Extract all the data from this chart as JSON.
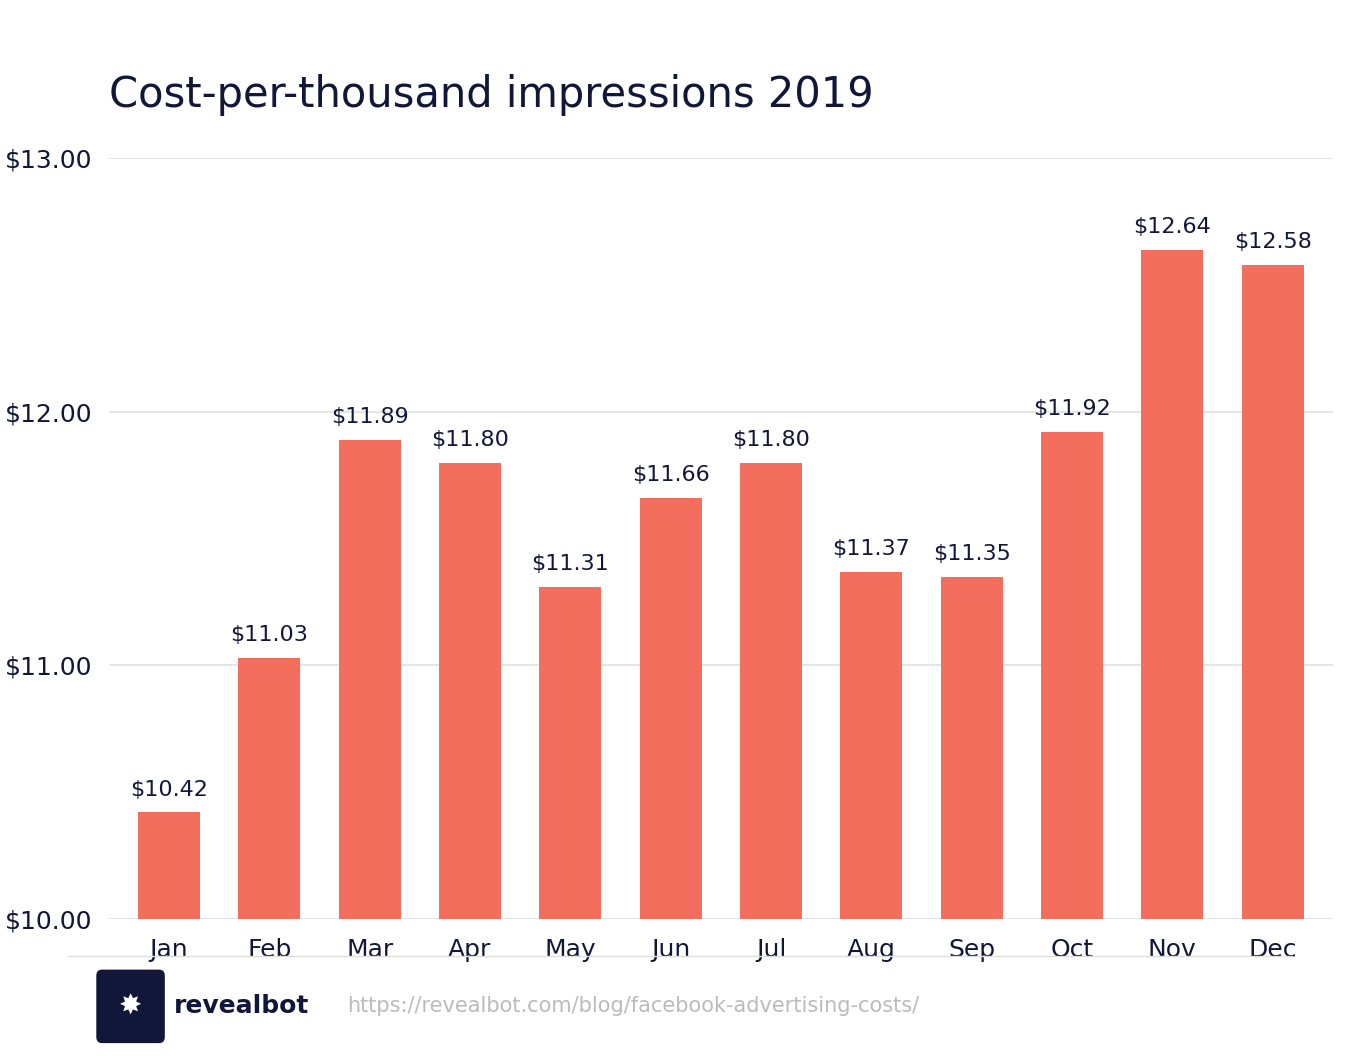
{
  "title": "Cost-per-thousand impressions 2019",
  "categories": [
    "Jan",
    "Feb",
    "Mar",
    "Apr",
    "May",
    "Jun",
    "Jul",
    "Aug",
    "Sep",
    "Oct",
    "Nov",
    "Dec"
  ],
  "values": [
    10.42,
    11.03,
    11.89,
    11.8,
    11.31,
    11.66,
    11.8,
    11.37,
    11.35,
    11.92,
    12.64,
    12.58
  ],
  "bar_color": "#F46E5E",
  "background_color": "#ffffff",
  "label_color": "#12173a",
  "grid_color": "#e0e0e0",
  "ylim": [
    10.0,
    13.0
  ],
  "ybase": 10.0,
  "yticks": [
    10.0,
    11.0,
    12.0,
    13.0
  ],
  "title_fontsize": 30,
  "label_fontsize": 16,
  "tick_fontsize": 18,
  "footer_text": "https://revealbot.com/blog/facebook-advertising-costs/",
  "footer_brand": "revealbot",
  "brand_bg_color": "#12173a"
}
